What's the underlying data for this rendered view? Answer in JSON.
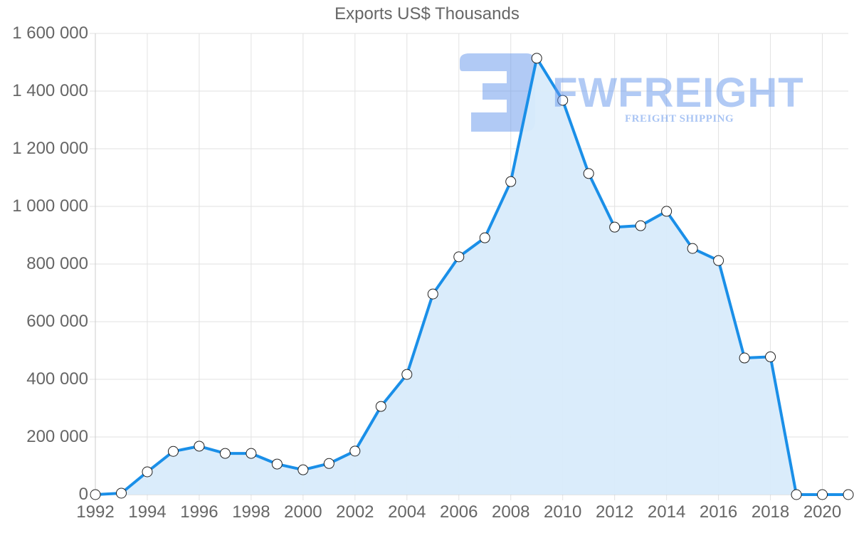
{
  "title": "Exports US$ Thousands",
  "watermark": {
    "brand": "FWFREIGHT",
    "tagline": "FREIGHT SHIPPING"
  },
  "colors": {
    "line": "#1a8fe8",
    "fill": "#d8ebfb",
    "grid": "#e2e2e2",
    "axis": "#cccccc",
    "text": "#666666",
    "point_fill": "#ffffff",
    "point_stroke": "#222222"
  },
  "y_ticks": [
    "0",
    "200 000",
    "400 000",
    "600 000",
    "800 000",
    "1 000 000",
    "1 200 000",
    "1 400 000",
    "1 600 000"
  ],
  "x_ticks": [
    "1992",
    "1994",
    "1996",
    "1998",
    "2000",
    "2002",
    "2004",
    "2006",
    "2008",
    "2010",
    "2012",
    "2014",
    "2016",
    "2018",
    "2020"
  ],
  "chart_data": {
    "type": "area",
    "title": "Exports US$ Thousands",
    "xlabel": "",
    "ylabel": "",
    "ylim": [
      0,
      1600000
    ],
    "xlim": [
      1992,
      2021
    ],
    "grid": true,
    "legend": null,
    "x": [
      1992,
      1993,
      1994,
      1995,
      1996,
      1997,
      1998,
      1999,
      2000,
      2001,
      2002,
      2003,
      2004,
      2005,
      2006,
      2007,
      2008,
      2009,
      2010,
      2011,
      2012,
      2013,
      2014,
      2015,
      2016,
      2017,
      2018,
      2019,
      2020,
      2021
    ],
    "series": [
      {
        "name": "Exports US$ Thousands",
        "values": [
          0,
          5000,
          79000,
          150000,
          168000,
          143000,
          143000,
          106000,
          86000,
          108000,
          151000,
          306000,
          417000,
          696000,
          825000,
          891000,
          1086000,
          1514000,
          1368000,
          1114000,
          928000,
          933000,
          983000,
          854000,
          812000,
          474000,
          478000,
          0,
          0,
          0
        ]
      }
    ]
  }
}
